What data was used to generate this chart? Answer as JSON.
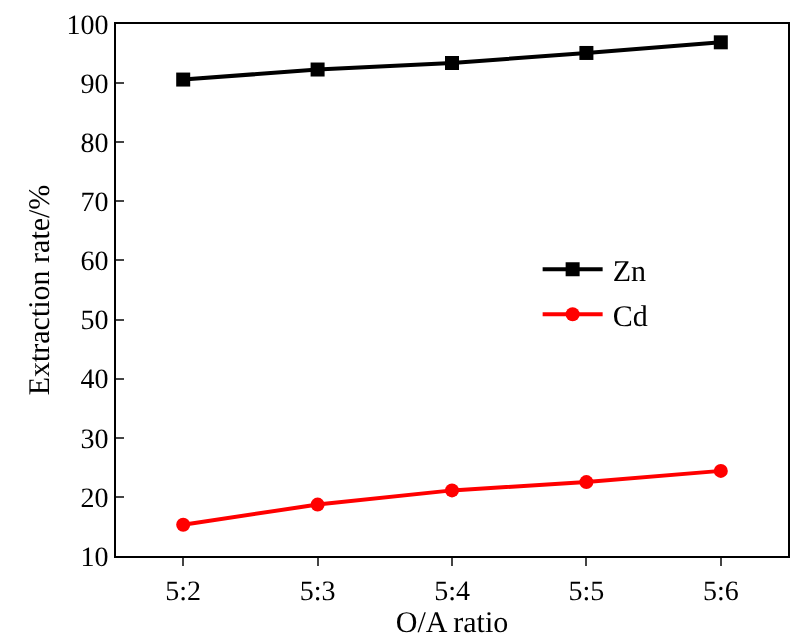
{
  "chart_data": {
    "type": "line",
    "xlabel": "O/A ratio",
    "ylabel": "Extraction rate/%",
    "categories": [
      "5:2",
      "5:3",
      "5:4",
      "5:5",
      "5:6"
    ],
    "series": [
      {
        "name": "Zn",
        "color": "#000000",
        "marker": "square",
        "values": [
          90.6,
          92.3,
          93.4,
          95.1,
          96.9
        ]
      },
      {
        "name": "Cd",
        "color": "#ff0000",
        "marker": "circle",
        "values": [
          15.3,
          18.7,
          21.1,
          22.5,
          24.4
        ]
      }
    ],
    "ylim": [
      10,
      100
    ],
    "yticks": [
      10,
      20,
      30,
      40,
      50,
      60,
      70,
      80,
      90,
      100
    ],
    "grid": false,
    "legend": "right",
    "line_style": "solid"
  }
}
